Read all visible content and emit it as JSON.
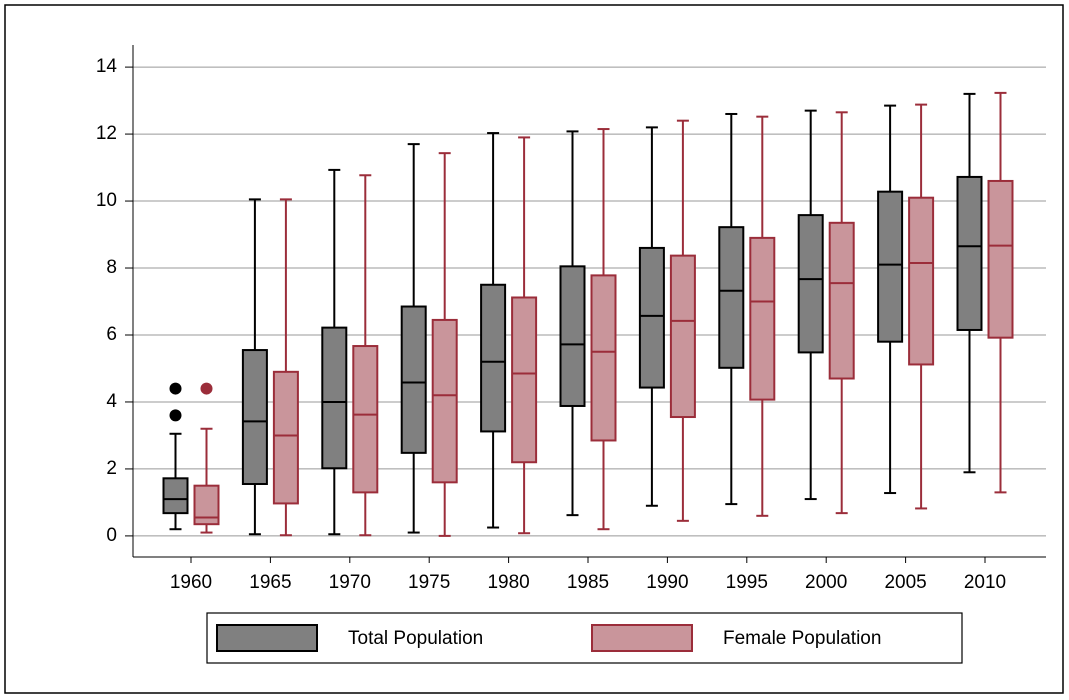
{
  "chart_data": {
    "type": "box",
    "categories": [
      "1960",
      "1965",
      "1970",
      "1975",
      "1980",
      "1985",
      "1990",
      "1995",
      "2000",
      "2005",
      "2010"
    ],
    "series": [
      {
        "name": "Total Population",
        "color": "#808080",
        "stroke": "#000000",
        "min": [
          0.2,
          0.05,
          0.05,
          0.1,
          0.25,
          0.62,
          0.9,
          0.95,
          1.1,
          1.28,
          1.9
        ],
        "q1": [
          0.68,
          1.55,
          2.02,
          2.48,
          3.12,
          3.88,
          4.43,
          5.02,
          5.48,
          5.8,
          6.15
        ],
        "median": [
          1.1,
          3.42,
          4.0,
          4.58,
          5.2,
          5.72,
          6.57,
          7.32,
          7.67,
          8.1,
          8.65
        ],
        "q3": [
          1.72,
          5.55,
          6.22,
          6.85,
          7.5,
          8.05,
          8.6,
          9.22,
          9.58,
          10.28,
          10.72
        ],
        "max": [
          3.05,
          10.05,
          10.93,
          11.7,
          12.03,
          12.08,
          12.2,
          12.6,
          12.7,
          12.85,
          13.2
        ],
        "outliers": [
          [
            3.6,
            4.4
          ],
          [],
          [],
          [],
          [],
          [],
          [],
          [],
          [],
          [],
          []
        ]
      },
      {
        "name": "Female Population",
        "color": "#c9959b",
        "stroke": "#9b2d3a",
        "min": [
          0.1,
          0.02,
          0.02,
          0.0,
          0.08,
          0.2,
          0.45,
          0.6,
          0.68,
          0.82,
          1.3
        ],
        "q1": [
          0.35,
          0.97,
          1.3,
          1.6,
          2.2,
          2.85,
          3.55,
          4.07,
          4.7,
          5.12,
          5.92
        ],
        "median": [
          0.55,
          3.0,
          3.62,
          4.2,
          4.85,
          5.5,
          6.42,
          7.0,
          7.55,
          8.15,
          8.67
        ],
        "q3": [
          1.5,
          4.9,
          5.67,
          6.45,
          7.12,
          7.78,
          8.37,
          8.9,
          9.35,
          10.1,
          10.6
        ],
        "max": [
          3.2,
          10.05,
          10.77,
          11.43,
          11.9,
          12.15,
          12.4,
          12.52,
          12.65,
          12.88,
          13.23
        ],
        "outliers": [
          [
            4.4
          ],
          [],
          [],
          [],
          [],
          [],
          [],
          [],
          [],
          [],
          []
        ]
      }
    ],
    "ylim": [
      -0.63,
      14.66
    ],
    "yticks": [
      0,
      2,
      4,
      6,
      8,
      10,
      12,
      14
    ],
    "grid": true
  }
}
